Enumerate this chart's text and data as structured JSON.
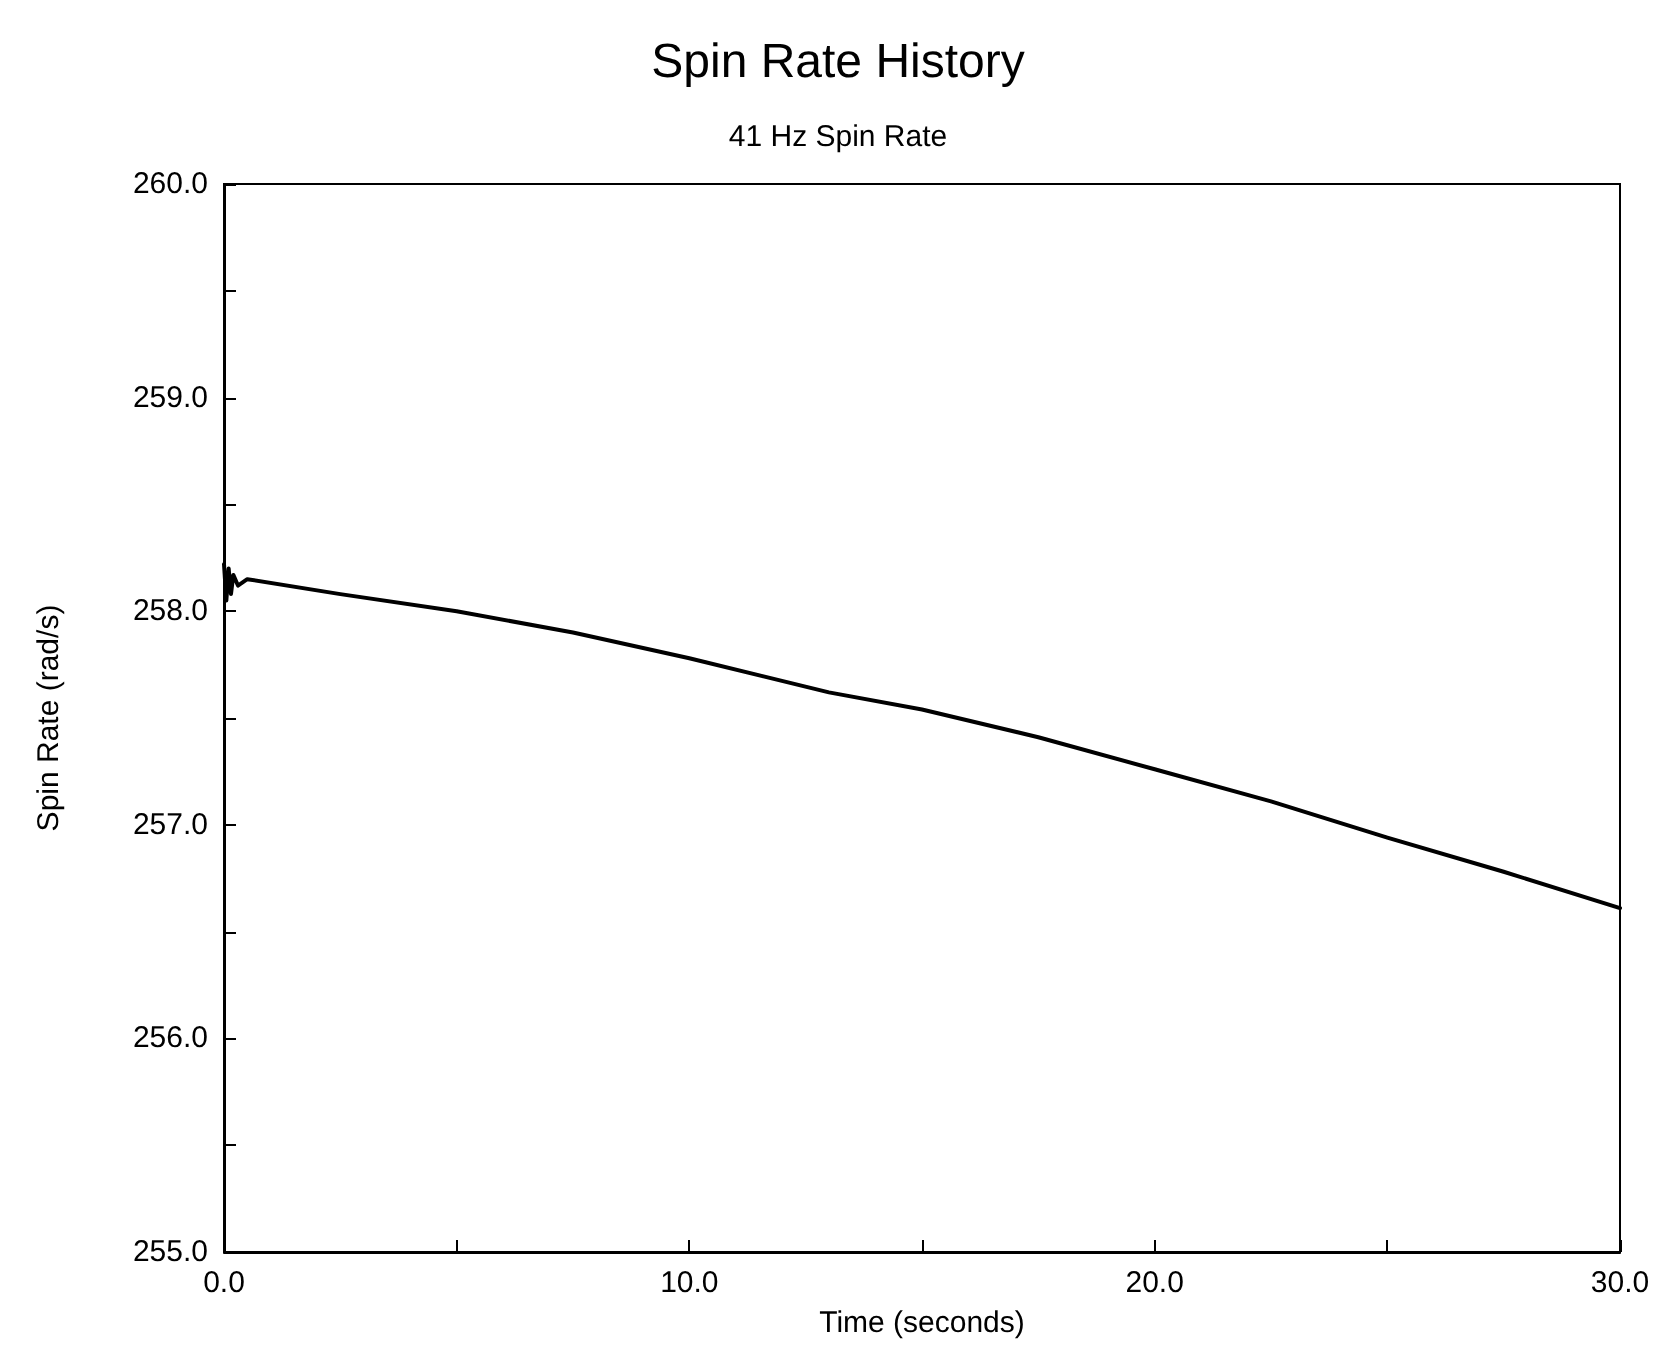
{
  "chart_data": {
    "type": "line",
    "title": "Spin Rate History",
    "subtitle": "41 Hz Spin Rate",
    "xlabel": "Time (seconds)",
    "ylabel": "Spin Rate (rad/s)",
    "x": [
      0,
      0.05,
      0.1,
      0.15,
      0.2,
      0.3,
      0.5,
      2.5,
      5,
      7.5,
      10,
      13,
      15,
      17.5,
      20,
      22.5,
      25,
      27.5,
      30
    ],
    "series": [
      {
        "color": "#000000",
        "values": [
          258.22,
          258.05,
          258.2,
          258.08,
          258.17,
          258.12,
          258.15,
          258.08,
          258.0,
          257.9,
          257.78,
          257.62,
          257.54,
          257.41,
          257.26,
          257.11,
          256.94,
          256.78,
          256.61
        ]
      }
    ],
    "xlim": [
      0,
      30
    ],
    "xticks": [
      {
        "value": 0,
        "label": "0.0"
      },
      {
        "value": 5,
        "label": null
      },
      {
        "value": 10,
        "label": "10.0"
      },
      {
        "value": 15,
        "label": null
      },
      {
        "value": 20,
        "label": "20.0"
      },
      {
        "value": 25,
        "label": null
      },
      {
        "value": 30,
        "label": "30.0"
      }
    ],
    "ylim": [
      255,
      260
    ],
    "yticks": [
      {
        "value": 255,
        "label": "255.0"
      },
      {
        "value": 255.5,
        "label": null
      },
      {
        "value": 256,
        "label": "256.0"
      },
      {
        "value": 256.5,
        "label": null
      },
      {
        "value": 257,
        "label": "257.0"
      },
      {
        "value": 257.5,
        "label": null
      },
      {
        "value": 258,
        "label": "258.0"
      },
      {
        "value": 258.5,
        "label": null
      },
      {
        "value": 259,
        "label": "259.0"
      },
      {
        "value": 259.5,
        "label": null
      },
      {
        "value": 260,
        "label": "260.0"
      }
    ],
    "grid": false,
    "marker": "none",
    "line_style": "solid"
  }
}
